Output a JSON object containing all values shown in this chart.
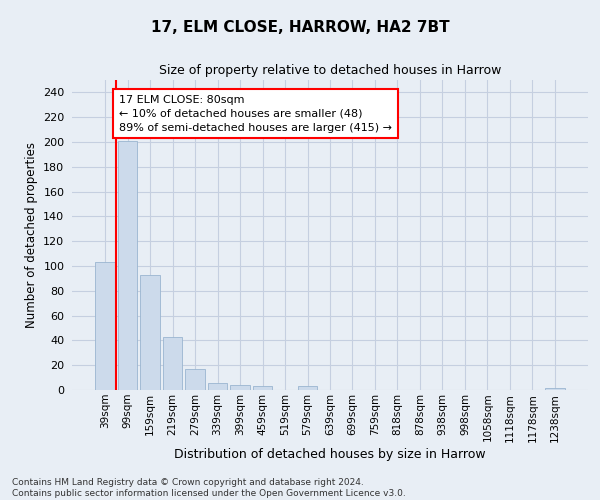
{
  "title": "17, ELM CLOSE, HARROW, HA2 7BT",
  "subtitle": "Size of property relative to detached houses in Harrow",
  "xlabel": "Distribution of detached houses by size in Harrow",
  "ylabel": "Number of detached properties",
  "footer_line1": "Contains HM Land Registry data © Crown copyright and database right 2024.",
  "footer_line2": "Contains public sector information licensed under the Open Government Licence v3.0.",
  "bar_labels": [
    "39sqm",
    "99sqm",
    "159sqm",
    "219sqm",
    "279sqm",
    "339sqm",
    "399sqm",
    "459sqm",
    "519sqm",
    "579sqm",
    "639sqm",
    "699sqm",
    "759sqm",
    "818sqm",
    "878sqm",
    "938sqm",
    "998sqm",
    "1058sqm",
    "1118sqm",
    "1178sqm",
    "1238sqm"
  ],
  "bar_values": [
    103,
    201,
    93,
    43,
    17,
    6,
    4,
    3,
    0,
    3,
    0,
    0,
    0,
    0,
    0,
    0,
    0,
    0,
    0,
    0,
    2
  ],
  "bar_color": "#ccdaeb",
  "bar_edge_color": "#9ab5d0",
  "grid_color": "#c5cfe0",
  "bg_color": "#e8eef5",
  "annotation_line1": "17 ELM CLOSE: 80sqm",
  "annotation_line2": "← 10% of detached houses are smaller (48)",
  "annotation_line3": "89% of semi-detached houses are larger (415) →",
  "annotation_box_color": "white",
  "annotation_box_edge_color": "red",
  "redline_color": "red",
  "ylim": [
    0,
    250
  ],
  "yticks": [
    0,
    20,
    40,
    60,
    80,
    100,
    120,
    140,
    160,
    180,
    200,
    220,
    240
  ]
}
